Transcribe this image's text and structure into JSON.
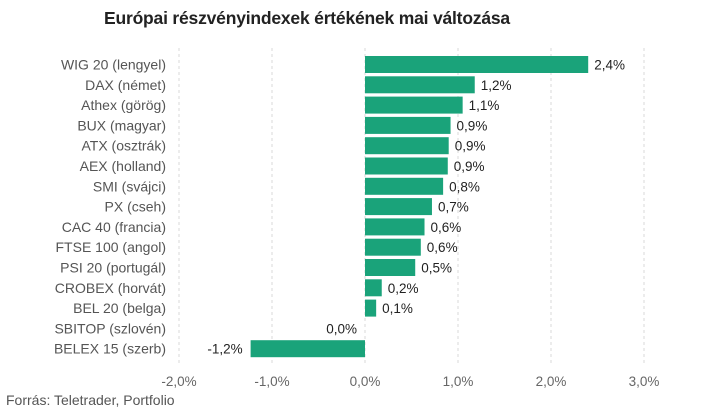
{
  "chart_data": {
    "type": "bar",
    "orientation": "horizontal",
    "title": "Európai részvényindexek értékének mai változása",
    "source": "Forrás: Teletrader, Portfolio",
    "bar_color": "#1aa37a",
    "grid": true,
    "xlim": [
      -2.0,
      3.0
    ],
    "x_ticks": [
      {
        "value": -2.0,
        "label": "-2,0%"
      },
      {
        "value": -1.0,
        "label": "-1,0%"
      },
      {
        "value": 0.0,
        "label": "0,0%"
      },
      {
        "value": 1.0,
        "label": "1,0%"
      },
      {
        "value": 2.0,
        "label": "2,0%"
      },
      {
        "value": 3.0,
        "label": "3,0%"
      }
    ],
    "categories": [
      "WIG 20 (lengyel)",
      "DAX (német)",
      "Athex (görög)",
      "BUX (magyar)",
      "ATX (osztrák)",
      "AEX (holland)",
      "SMI (svájci)",
      "PX (cseh)",
      "CAC 40 (francia)",
      "FTSE 100 (angol)",
      "PSI 20 (portugál)",
      "CROBEX (horvát)",
      "BEL 20 (belga)",
      "SBITOP (szlovén)",
      "BELEX 15 (szerb)"
    ],
    "values": [
      2.4,
      1.18,
      1.05,
      0.92,
      0.9,
      0.89,
      0.84,
      0.72,
      0.64,
      0.6,
      0.54,
      0.18,
      0.12,
      0.0,
      -1.23
    ],
    "value_labels": [
      "2,4%",
      "1,2%",
      "1,1%",
      "0,9%",
      "0,9%",
      "0,9%",
      "0,8%",
      "0,7%",
      "0,6%",
      "0,6%",
      "0,5%",
      "0,2%",
      "0,1%",
      "0,0%",
      "-1,2%"
    ]
  }
}
